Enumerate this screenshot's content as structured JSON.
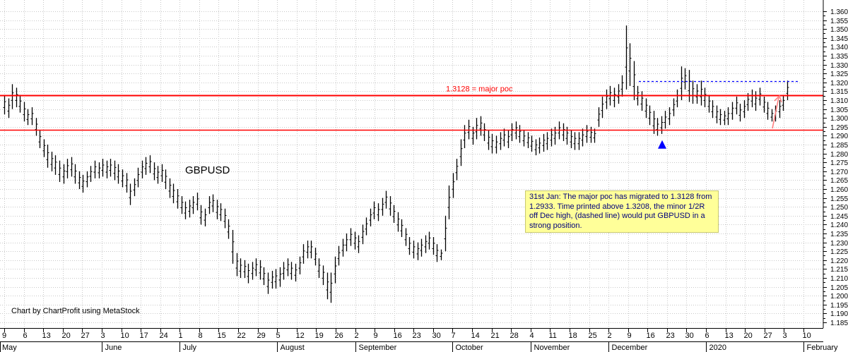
{
  "chart_data": {
    "type": "ohlc",
    "symbol": "GBPUSD",
    "credit": "Chart by ChartProfit using MetaStock",
    "annotation": "31st Jan: The major poc has migrated to 1.3128 from 1.2933.  Time printed above 1.3208, the minor 1/2R off Dec high, (dashed line) would put GBPUSD in a strong position.",
    "ylim": [
      1.182,
      1.364
    ],
    "y_ticks": [
      "1.185",
      "1.190",
      "1.195",
      "1.200",
      "1.205",
      "1.210",
      "1.215",
      "1.220",
      "1.225",
      "1.230",
      "1.235",
      "1.240",
      "1.245",
      "1.250",
      "1.255",
      "1.260",
      "1.265",
      "1.270",
      "1.275",
      "1.280",
      "1.285",
      "1.290",
      "1.295",
      "1.300",
      "1.305",
      "1.310",
      "1.315",
      "1.320",
      "1.325",
      "1.330",
      "1.335",
      "1.340",
      "1.345",
      "1.350",
      "1.355",
      "1.360"
    ],
    "x_day_ticks": [
      "9",
      "6",
      "13",
      "20",
      "27",
      "3",
      "10",
      "17",
      "24",
      "1",
      "8",
      "15",
      "22",
      "29",
      "5",
      "12",
      "19",
      "26",
      "2",
      "9",
      "16",
      "23",
      "30",
      "7",
      "14",
      "21",
      "28",
      "4",
      "11",
      "18",
      "25",
      "2",
      "9",
      "16",
      "23",
      "30",
      "6",
      "13",
      "20",
      "27",
      "3",
      "10"
    ],
    "x_months": [
      "May",
      "June",
      "July",
      "August",
      "September",
      "October",
      "November",
      "December",
      "2020",
      "February"
    ],
    "levels": [
      {
        "value": 1.3128,
        "label": "1.3128 = major poc",
        "color": "#ff0000",
        "style": "solid"
      },
      {
        "value": 1.2933,
        "label": "",
        "color": "#ff0000",
        "style": "solid"
      },
      {
        "value": 1.3208,
        "label": "",
        "color": "#0000ff",
        "style": "dashed"
      }
    ],
    "bars": [
      [
        1.313,
        1.302
      ],
      [
        1.311,
        1.3
      ],
      [
        1.319,
        1.305
      ],
      [
        1.317,
        1.306
      ],
      [
        1.313,
        1.303
      ],
      [
        1.309,
        1.298
      ],
      [
        1.305,
        1.296
      ],
      [
        1.306,
        1.296
      ],
      [
        1.3,
        1.29
      ],
      [
        1.293,
        1.283
      ],
      [
        1.288,
        1.278
      ],
      [
        1.285,
        1.272
      ],
      [
        1.281,
        1.27
      ],
      [
        1.279,
        1.268
      ],
      [
        1.276,
        1.264
      ],
      [
        1.274,
        1.263
      ],
      [
        1.277,
        1.266
      ],
      [
        1.278,
        1.267
      ],
      [
        1.274,
        1.263
      ],
      [
        1.27,
        1.26
      ],
      [
        1.268,
        1.258
      ],
      [
        1.27,
        1.261
      ],
      [
        1.273,
        1.264
      ],
      [
        1.276,
        1.266
      ],
      [
        1.275,
        1.266
      ],
      [
        1.277,
        1.267
      ],
      [
        1.276,
        1.266
      ],
      [
        1.277,
        1.267
      ],
      [
        1.276,
        1.265
      ],
      [
        1.274,
        1.263
      ],
      [
        1.271,
        1.261
      ],
      [
        1.269,
        1.258
      ],
      [
        1.263,
        1.251
      ],
      [
        1.266,
        1.256
      ],
      [
        1.272,
        1.261
      ],
      [
        1.276,
        1.266
      ],
      [
        1.278,
        1.268
      ],
      [
        1.279,
        1.269
      ],
      [
        1.275,
        1.265
      ],
      [
        1.273,
        1.263
      ],
      [
        1.274,
        1.264
      ],
      [
        1.271,
        1.26
      ],
      [
        1.266,
        1.255
      ],
      [
        1.263,
        1.252
      ],
      [
        1.26,
        1.249
      ],
      [
        1.256,
        1.246
      ],
      [
        1.253,
        1.243
      ],
      [
        1.254,
        1.244
      ],
      [
        1.256,
        1.246
      ],
      [
        1.258,
        1.248
      ],
      [
        1.251,
        1.24
      ],
      [
        1.249,
        1.239
      ],
      [
        1.256,
        1.246
      ],
      [
        1.257,
        1.247
      ],
      [
        1.254,
        1.243
      ],
      [
        1.252,
        1.242
      ],
      [
        1.249,
        1.238
      ],
      [
        1.243,
        1.232
      ],
      [
        1.237,
        1.218
      ],
      [
        1.224,
        1.211
      ],
      [
        1.221,
        1.21
      ],
      [
        1.22,
        1.21
      ],
      [
        1.218,
        1.207
      ],
      [
        1.219,
        1.209
      ],
      [
        1.221,
        1.211
      ],
      [
        1.22,
        1.209
      ],
      [
        1.216,
        1.206
      ],
      [
        1.213,
        1.201
      ],
      [
        1.214,
        1.204
      ],
      [
        1.215,
        1.204
      ],
      [
        1.216,
        1.205
      ],
      [
        1.219,
        1.209
      ],
      [
        1.221,
        1.211
      ],
      [
        1.219,
        1.209
      ],
      [
        1.218,
        1.208
      ],
      [
        1.222,
        1.212
      ],
      [
        1.229,
        1.218
      ],
      [
        1.231,
        1.221
      ],
      [
        1.231,
        1.221
      ],
      [
        1.227,
        1.217
      ],
      [
        1.221,
        1.21
      ],
      [
        1.217,
        1.206
      ],
      [
        1.213,
        1.198
      ],
      [
        1.213,
        1.196
      ],
      [
        1.222,
        1.207
      ],
      [
        1.228,
        1.217
      ],
      [
        1.232,
        1.222
      ],
      [
        1.235,
        1.225
      ],
      [
        1.238,
        1.228
      ],
      [
        1.236,
        1.226
      ],
      [
        1.234,
        1.224
      ],
      [
        1.24,
        1.229
      ],
      [
        1.244,
        1.234
      ],
      [
        1.249,
        1.239
      ],
      [
        1.253,
        1.243
      ],
      [
        1.252,
        1.242
      ],
      [
        1.255,
        1.245
      ],
      [
        1.259,
        1.249
      ],
      [
        1.256,
        1.245
      ],
      [
        1.251,
        1.241
      ],
      [
        1.247,
        1.236
      ],
      [
        1.243,
        1.233
      ],
      [
        1.238,
        1.228
      ],
      [
        1.233,
        1.223
      ],
      [
        1.231,
        1.221
      ],
      [
        1.23,
        1.22
      ],
      [
        1.232,
        1.222
      ],
      [
        1.234,
        1.224
      ],
      [
        1.236,
        1.226
      ],
      [
        1.233,
        1.223
      ],
      [
        1.229,
        1.219
      ],
      [
        1.226,
        1.22
      ],
      [
        1.245,
        1.225
      ],
      [
        1.262,
        1.243
      ],
      [
        1.269,
        1.255
      ],
      [
        1.277,
        1.265
      ],
      [
        1.288,
        1.273
      ],
      [
        1.296,
        1.283
      ],
      [
        1.299,
        1.288
      ],
      [
        1.295,
        1.285
      ],
      [
        1.3,
        1.288
      ],
      [
        1.301,
        1.29
      ],
      [
        1.297,
        1.287
      ],
      [
        1.293,
        1.282
      ],
      [
        1.291,
        1.28
      ],
      [
        1.29,
        1.28
      ],
      [
        1.292,
        1.282
      ],
      [
        1.294,
        1.284
      ],
      [
        1.293,
        1.283
      ],
      [
        1.297,
        1.287
      ],
      [
        1.298,
        1.288
      ],
      [
        1.296,
        1.286
      ],
      [
        1.293,
        1.284
      ],
      [
        1.292,
        1.283
      ],
      [
        1.29,
        1.281
      ],
      [
        1.288,
        1.279
      ],
      [
        1.289,
        1.28
      ],
      [
        1.291,
        1.281
      ],
      [
        1.292,
        1.282
      ],
      [
        1.294,
        1.284
      ],
      [
        1.295,
        1.285
      ],
      [
        1.298,
        1.288
      ],
      [
        1.297,
        1.287
      ],
      [
        1.295,
        1.285
      ],
      [
        1.293,
        1.283
      ],
      [
        1.292,
        1.282
      ],
      [
        1.292,
        1.282
      ],
      [
        1.294,
        1.284
      ],
      [
        1.296,
        1.286
      ],
      [
        1.295,
        1.286
      ],
      [
        1.294,
        1.286
      ],
      [
        1.306,
        1.295
      ],
      [
        1.312,
        1.3
      ],
      [
        1.316,
        1.305
      ],
      [
        1.318,
        1.307
      ],
      [
        1.317,
        1.306
      ],
      [
        1.319,
        1.308
      ],
      [
        1.324,
        1.312
      ],
      [
        1.352,
        1.316
      ],
      [
        1.342,
        1.318
      ],
      [
        1.332,
        1.31
      ],
      [
        1.318,
        1.307
      ],
      [
        1.315,
        1.304
      ],
      [
        1.311,
        1.3
      ],
      [
        1.307,
        1.296
      ],
      [
        1.304,
        1.291
      ],
      [
        1.3,
        1.29
      ],
      [
        1.301,
        1.291
      ],
      [
        1.304,
        1.294
      ],
      [
        1.306,
        1.296
      ],
      [
        1.311,
        1.301
      ],
      [
        1.316,
        1.306
      ],
      [
        1.329,
        1.31
      ],
      [
        1.328,
        1.316
      ],
      [
        1.327,
        1.309
      ],
      [
        1.321,
        1.308
      ],
      [
        1.319,
        1.308
      ],
      [
        1.321,
        1.307
      ],
      [
        1.317,
        1.306
      ],
      [
        1.313,
        1.303
      ],
      [
        1.31,
        1.3
      ],
      [
        1.307,
        1.297
      ],
      [
        1.305,
        1.296
      ],
      [
        1.304,
        1.296
      ],
      [
        1.306,
        1.296
      ],
      [
        1.309,
        1.299
      ],
      [
        1.312,
        1.302
      ],
      [
        1.308,
        1.298
      ],
      [
        1.31,
        1.3
      ],
      [
        1.314,
        1.304
      ],
      [
        1.316,
        1.306
      ],
      [
        1.315,
        1.304
      ],
      [
        1.317,
        1.307
      ],
      [
        1.312,
        1.303
      ],
      [
        1.309,
        1.299
      ],
      [
        1.305,
        1.298
      ],
      [
        1.307,
        1.298
      ],
      [
        1.31,
        1.3
      ],
      [
        1.313,
        1.304
      ],
      [
        1.321,
        1.31
      ]
    ]
  }
}
